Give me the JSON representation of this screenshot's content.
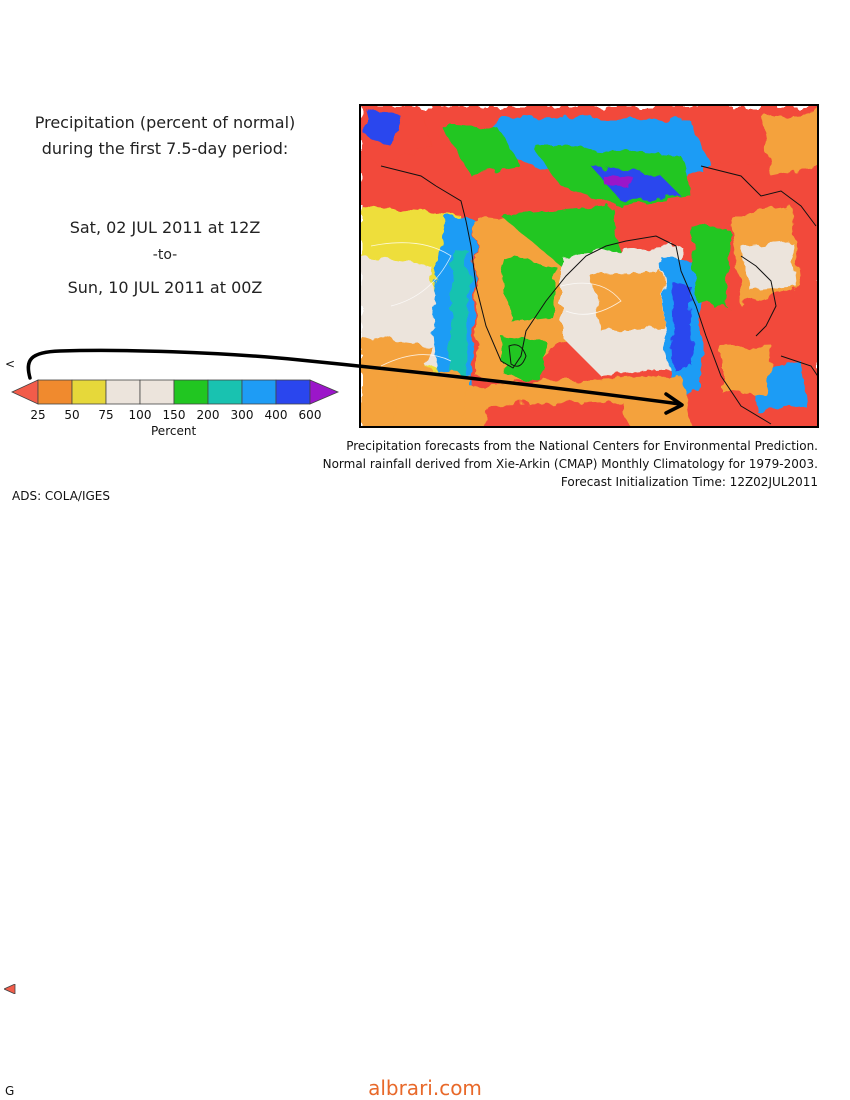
{
  "header": {
    "title_line1": "Precipitation (percent of normal)",
    "title_line2": "during the first 7.5-day period:",
    "start": "Sat, 02 JUL 2011 at 12Z",
    "to": "-to-",
    "end": "Sun, 10 JUL 2011 at 00Z"
  },
  "legend": {
    "unit_label": "Percent",
    "tick_labels": [
      "25",
      "50",
      "75",
      "100",
      "150",
      "200",
      "300",
      "400",
      "600"
    ],
    "colors": [
      "#f25c4a",
      "#f08a2e",
      "#e6d83a",
      "#ece4dc",
      "#ece4dc",
      "#21c621",
      "#19c2b0",
      "#1e9cf5",
      "#2a46ee",
      "#9b16c9"
    ]
  },
  "map": {
    "region": "South and Southeast Asia",
    "colors": {
      "red": "#f24a3a",
      "orange": "#f4a23c",
      "yellow": "#eede3a",
      "normal": "#ece4dc",
      "green": "#21c621",
      "cyan": "#19c2b0",
      "blue": "#1e9cf5",
      "darkblue": "#2a46ee",
      "purple": "#9b16c9"
    }
  },
  "credits": {
    "line1": "Precipitation forecasts from the National Centers for Environmental Prediction.",
    "line2": "Normal rainfall derived from Xie-Arkin (CMAP) Monthly Climatology for 1979-2003.",
    "line3": "Forecast Initialization Time: 12Z02JUL2011"
  },
  "grads_label": "ADS: COLA/IGES",
  "left_marker": "<",
  "bottom_left_fragment": "G",
  "watermark": "albrari.com"
}
